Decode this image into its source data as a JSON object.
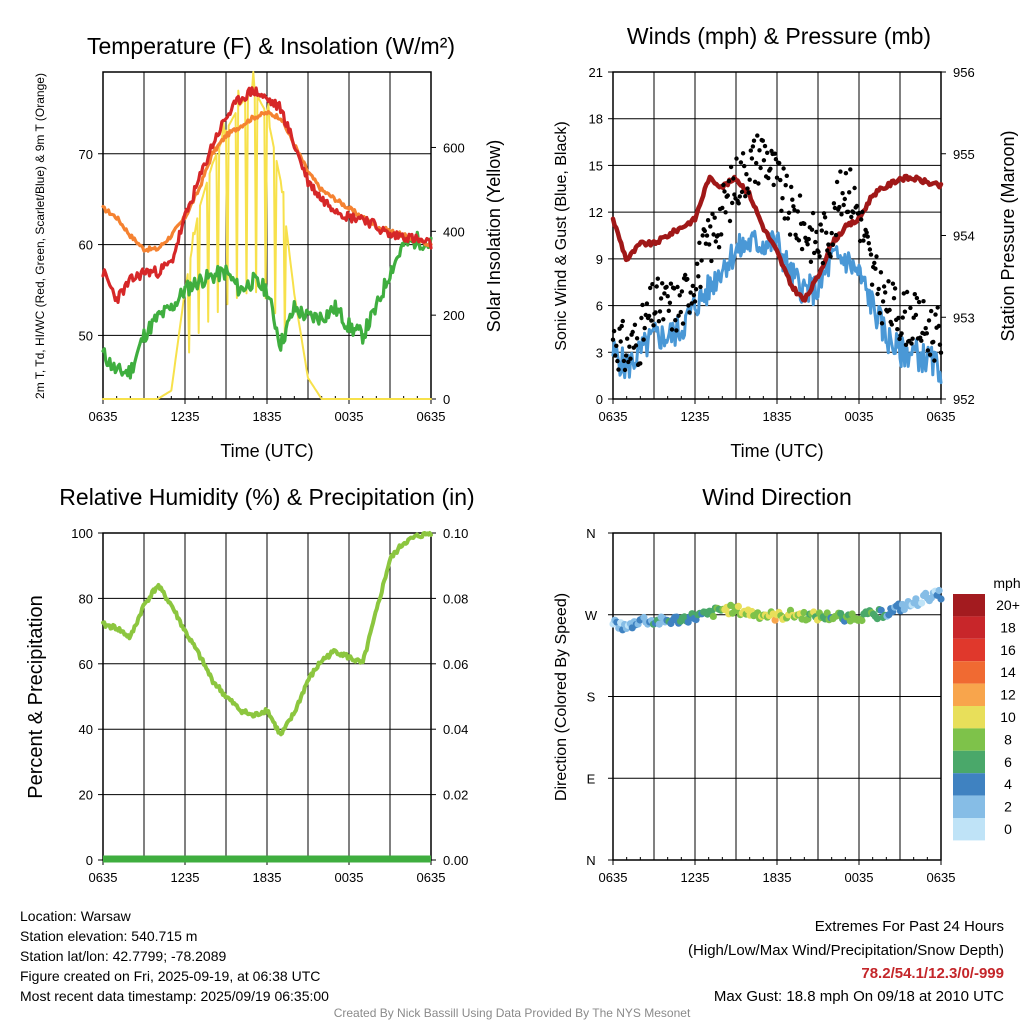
{
  "colors": {
    "temp": "#d62728",
    "dewpoint": "#3fae3f",
    "temp9m": "#f58231",
    "solar": "#f7e14b",
    "wind": "#4a98d6",
    "gust": "#000000",
    "pressure": "#a01818",
    "rh": "#8cc63f",
    "precip": "#3fae3f"
  },
  "x_ticks": [
    "0635",
    "1235",
    "1835",
    "0035",
    "0635"
  ],
  "chart_data": [
    {
      "type": "line",
      "title": "Temperature (F) & Insolation (W/m²)",
      "xlabel": "Time (UTC)",
      "ylabel": "2m T, Td, HI/WC (Red, Green, Scarlet/Blue) & 9m T (Orange)",
      "y2label": "Solar Insolation (Yellow)",
      "ylim": [
        43,
        79
      ],
      "y_ticks": [
        50,
        60,
        70
      ],
      "y2lim": [
        0,
        780
      ],
      "y2_ticks": [
        0,
        200,
        400,
        600
      ],
      "x_hours": [
        0,
        1,
        2,
        3,
        4,
        5,
        6,
        7,
        8,
        9,
        10,
        11,
        12,
        13,
        14,
        15,
        16,
        17,
        18,
        19,
        20,
        21,
        22,
        23,
        24
      ],
      "series": [
        {
          "name": "2m T",
          "axis": "left",
          "values": [
            57,
            54,
            56,
            57,
            57,
            58,
            63,
            67,
            71,
            74,
            76,
            77,
            76,
            75,
            71,
            67,
            65,
            64,
            63,
            63,
            62,
            61,
            61,
            60.5,
            60
          ]
        },
        {
          "name": "Td",
          "axis": "left",
          "values": [
            48,
            46,
            46,
            50,
            52,
            53,
            55,
            56,
            56.5,
            57,
            55,
            56,
            55,
            49,
            53,
            52,
            52,
            53,
            51,
            50,
            53,
            57,
            60,
            60.5,
            60
          ]
        },
        {
          "name": "9m T",
          "axis": "left",
          "values": [
            64,
            63,
            61,
            59.5,
            59.5,
            61,
            63,
            66,
            70,
            72,
            73,
            74,
            74.5,
            74,
            71,
            68,
            66,
            65,
            64,
            63,
            62,
            61.5,
            61,
            60.5,
            60
          ]
        },
        {
          "name": "Solar Insolation",
          "axis": "right",
          "values": [
            0,
            0,
            0,
            0,
            0,
            20,
            260,
            450,
            560,
            640,
            700,
            740,
            680,
            520,
            250,
            50,
            0,
            0,
            0,
            0,
            0,
            0,
            0,
            0,
            0
          ]
        }
      ]
    },
    {
      "type": "line",
      "title": "Winds (mph) & Pressure (mb)",
      "xlabel": "Time (UTC)",
      "ylabel": "Sonic Wind & Gust (Blue, Black)",
      "y2label": "Station Pressure (Maroon)",
      "ylim": [
        0,
        21
      ],
      "y_ticks": [
        0,
        3,
        6,
        9,
        12,
        15,
        18,
        21
      ],
      "y2lim": [
        952,
        956
      ],
      "y2_ticks": [
        952,
        953,
        954,
        955,
        956
      ],
      "x_hours": [
        0,
        1,
        2,
        3,
        4,
        5,
        6,
        7,
        8,
        9,
        10,
        11,
        12,
        13,
        14,
        15,
        16,
        17,
        18,
        19,
        20,
        21,
        22,
        23,
        24
      ],
      "series": [
        {
          "name": "Sonic Wind",
          "axis": "left",
          "values": [
            3,
            2,
            3,
            4,
            4,
            4.5,
            6,
            7,
            8.5,
            9.5,
            10,
            10,
            10,
            8,
            7,
            7,
            9,
            9,
            8,
            6,
            4,
            3,
            3,
            2.5,
            2
          ]
        },
        {
          "name": "Gust",
          "axis": "left",
          "values": [
            4,
            3,
            4,
            6,
            6,
            6,
            8,
            10,
            12,
            14,
            15,
            16,
            14,
            12,
            11,
            10,
            11,
            14,
            12,
            8,
            6,
            5.5,
            5,
            4.5,
            4
          ]
        },
        {
          "name": "Station Pressure",
          "axis": "right",
          "values": [
            954.2,
            953.7,
            953.9,
            953.9,
            954.0,
            954.1,
            954.2,
            954.7,
            954.6,
            954.7,
            954.5,
            954.1,
            953.8,
            953.4,
            953.2,
            953.5,
            953.9,
            954.1,
            954.2,
            954.5,
            954.6,
            954.7,
            954.7,
            954.65,
            954.6
          ]
        }
      ]
    },
    {
      "type": "line",
      "title": "Relative Humidity (%) & Precipitation (in)",
      "ylabel": "Percent & Precipitation",
      "ylim": [
        0,
        100
      ],
      "y_ticks": [
        0,
        20,
        40,
        60,
        80,
        100
      ],
      "y2lim": [
        0,
        0.1
      ],
      "y2_ticks": [
        "0.00",
        "0.02",
        "0.04",
        "0.06",
        "0.08",
        "0.10"
      ],
      "x_hours": [
        0,
        1,
        2,
        3,
        4,
        5,
        6,
        7,
        8,
        9,
        10,
        11,
        12,
        13,
        14,
        15,
        16,
        17,
        18,
        19,
        20,
        21,
        22,
        23,
        24
      ],
      "series": [
        {
          "name": "Relative Humidity",
          "axis": "left",
          "values": [
            72,
            71,
            68,
            78,
            84,
            78,
            70,
            63,
            55,
            50,
            46,
            44,
            46,
            38,
            45,
            55,
            61,
            64,
            62,
            60,
            76,
            92,
            97,
            99,
            100
          ]
        },
        {
          "name": "Precipitation",
          "axis": "right",
          "values": [
            0,
            0,
            0,
            0,
            0,
            0,
            0,
            0,
            0,
            0,
            0,
            0,
            0,
            0,
            0,
            0,
            0,
            0,
            0,
            0,
            0,
            0,
            0,
            0,
            0
          ]
        }
      ]
    },
    {
      "type": "scatter",
      "title": "Wind Direction",
      "ylabel": "Direction (Colored By Speed)",
      "y_ticks": [
        "N",
        "E",
        "S",
        "W",
        "N"
      ],
      "ylim": [
        0,
        360
      ],
      "x_hours": [
        0,
        1,
        2,
        3,
        4,
        5,
        6,
        7,
        8,
        9,
        10,
        11,
        12,
        13,
        14,
        15,
        16,
        17,
        18,
        19,
        20,
        21,
        22,
        23,
        24
      ],
      "direction": [
        262,
        255,
        265,
        262,
        263,
        265,
        268,
        270,
        276,
        275,
        272,
        270,
        268,
        270,
        269,
        268,
        268,
        268,
        268,
        270,
        272,
        278,
        282,
        290,
        292
      ],
      "speed": [
        2,
        2,
        3,
        4,
        4,
        4,
        5,
        6,
        8,
        9,
        10,
        9,
        10,
        9,
        8,
        8,
        6,
        6,
        8,
        6,
        4,
        3,
        2,
        2,
        2
      ],
      "legend_title": "mph",
      "legend_labels": [
        "20+",
        "18",
        "16",
        "14",
        "12",
        "10",
        "8",
        "6",
        "4",
        "2",
        "0"
      ],
      "legend_colors": [
        "#a31b1f",
        "#c8262a",
        "#e0382c",
        "#f06a32",
        "#f8a54c",
        "#e8df5a",
        "#7ec24a",
        "#4aa86a",
        "#3f82c1",
        "#86bde6",
        "#bfe3f7"
      ]
    }
  ],
  "info": {
    "location": "Location: Warsaw",
    "elevation": "Station elevation: 540.715 m",
    "latlon": "Station lat/lon: 42.7799; -78.2089",
    "created": "Figure created on Fri, 2025-09-19, at 06:38 UTC",
    "recent": "Most recent data timestamp: 2025/09/19 06:35:00"
  },
  "extremes": {
    "title": "Extremes For Past 24 Hours",
    "subtitle": "(High/Low/Max Wind/Precipitation/Snow Depth)",
    "values": "78.2/54.1/12.3/0/-999",
    "max_gust": "Max Gust: 18.8 mph On 09/18 at 2010 UTC"
  },
  "credit": "Created By Nick Bassill Using Data Provided By The NYS Mesonet"
}
